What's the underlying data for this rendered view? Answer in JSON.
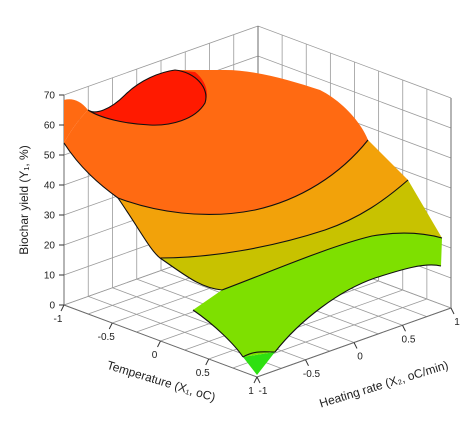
{
  "chart_data": {
    "type": "surface",
    "zlabel": "Biochar yield (Y₁, %)",
    "xlabel": "Temperature (X₁, oC)",
    "ylabel": "Heating rate (X₂, oC/min)",
    "xlim": [
      -1,
      1
    ],
    "ylim": [
      -1,
      1
    ],
    "zlim": [
      0,
      70
    ],
    "z_ticks": [
      "0",
      "10",
      "20",
      "30",
      "40",
      "50",
      "60",
      "70"
    ],
    "x_ticks": [
      "-1",
      "-0.5",
      "0",
      "0.5",
      "1"
    ],
    "y_ticks": [
      "-1",
      "-0.5",
      "0",
      "0.5",
      "1"
    ],
    "grid": true,
    "colors": {
      "high": "#ff1a00",
      "mid_high": "#ff6a12",
      "mid": "#f2a20a",
      "mid_low": "#c8c200",
      "low": "#7ee000",
      "lowest": "#2ee010"
    },
    "surface_points": [
      {
        "x": -1,
        "y": -1,
        "z": 54
      },
      {
        "x": -0.3,
        "y": -1,
        "z": 70
      },
      {
        "x": 1,
        "y": -1,
        "z": 8
      },
      {
        "x": -1,
        "y": 1,
        "z": 55
      },
      {
        "x": 1,
        "y": 1,
        "z": 10
      },
      {
        "x": 0,
        "y": 0,
        "z": 42
      }
    ]
  }
}
